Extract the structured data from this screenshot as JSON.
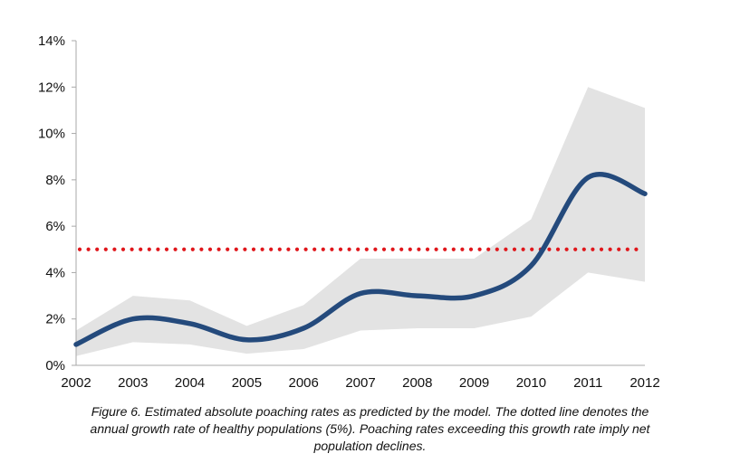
{
  "chart_data": {
    "type": "line",
    "x": [
      "2002",
      "2003",
      "2004",
      "2005",
      "2006",
      "2007",
      "2008",
      "2009",
      "2010",
      "2011",
      "2012"
    ],
    "series": [
      {
        "values": [
          0.9,
          2.0,
          1.8,
          1.1,
          1.6,
          3.1,
          3.0,
          3.0,
          4.3,
          8.1,
          7.4
        ]
      }
    ],
    "band": {
      "upper": [
        1.5,
        3.0,
        2.8,
        1.7,
        2.6,
        4.6,
        4.6,
        4.6,
        6.3,
        12.0,
        11.1
      ],
      "lower": [
        0.4,
        1.0,
        0.9,
        0.5,
        0.7,
        1.5,
        1.6,
        1.6,
        2.1,
        4.0,
        3.6
      ]
    },
    "reference_line": {
      "value": 5,
      "style": "dotted"
    },
    "ylim": [
      0,
      14
    ],
    "yticks": [
      "0%",
      "2%",
      "4%",
      "6%",
      "8%",
      "10%",
      "12%",
      "14%"
    ],
    "ytick_values": [
      0,
      2,
      4,
      6,
      8,
      10,
      12,
      14
    ],
    "grid": false,
    "title": "",
    "xlabel": "",
    "ylabel": "",
    "colors": {
      "line": "#244a7c",
      "band": "#e3e3e3",
      "reference": "#e0161b",
      "axis": "#a8a8a8"
    }
  },
  "caption_lines": [
    "Figure 6. Estimated absolute poaching rates as predicted by the model. The dotted line denotes the",
    "annual growth rate of healthy populations (5%). Poaching rates exceeding this growth rate imply net",
    "population declines."
  ]
}
